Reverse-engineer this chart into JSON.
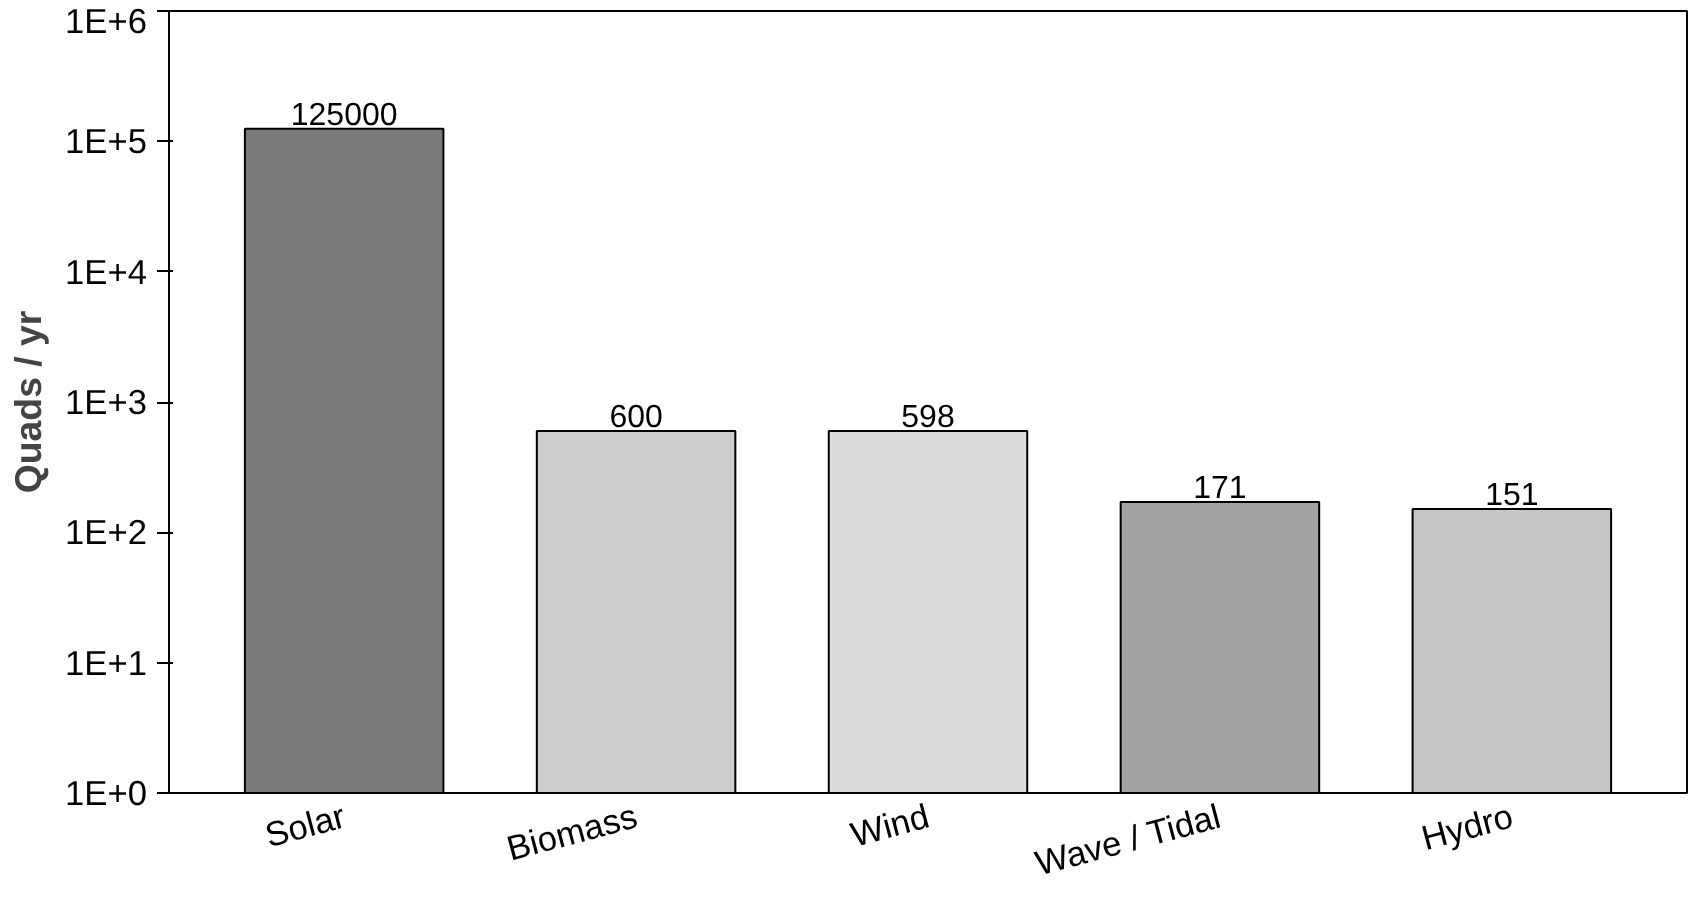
{
  "chart_data": {
    "type": "bar",
    "ylabel": "Quads / yr",
    "categories": [
      "Solar",
      "Biomass",
      "Wind",
      "Wave / Tidal",
      "Hydro"
    ],
    "values": [
      125000,
      600,
      598,
      171,
      151
    ],
    "colors": [
      "#7a7a7a",
      "#cdcdcd",
      "#dadada",
      "#a3a3a3",
      "#c6c6c6"
    ],
    "log": "y",
    "ylim": [
      1,
      1000000
    ],
    "yticks": [
      {
        "value": 1,
        "label": "1E+0"
      },
      {
        "value": 10,
        "label": "1E+1"
      },
      {
        "value": 100,
        "label": "1E+2"
      },
      {
        "value": 1000,
        "label": "1E+3"
      },
      {
        "value": 10000,
        "label": "1E+4"
      },
      {
        "value": 100000,
        "label": "1E+5"
      },
      {
        "value": 1000000,
        "label": "1E+6"
      }
    ],
    "data_labels": true,
    "grid": false
  }
}
